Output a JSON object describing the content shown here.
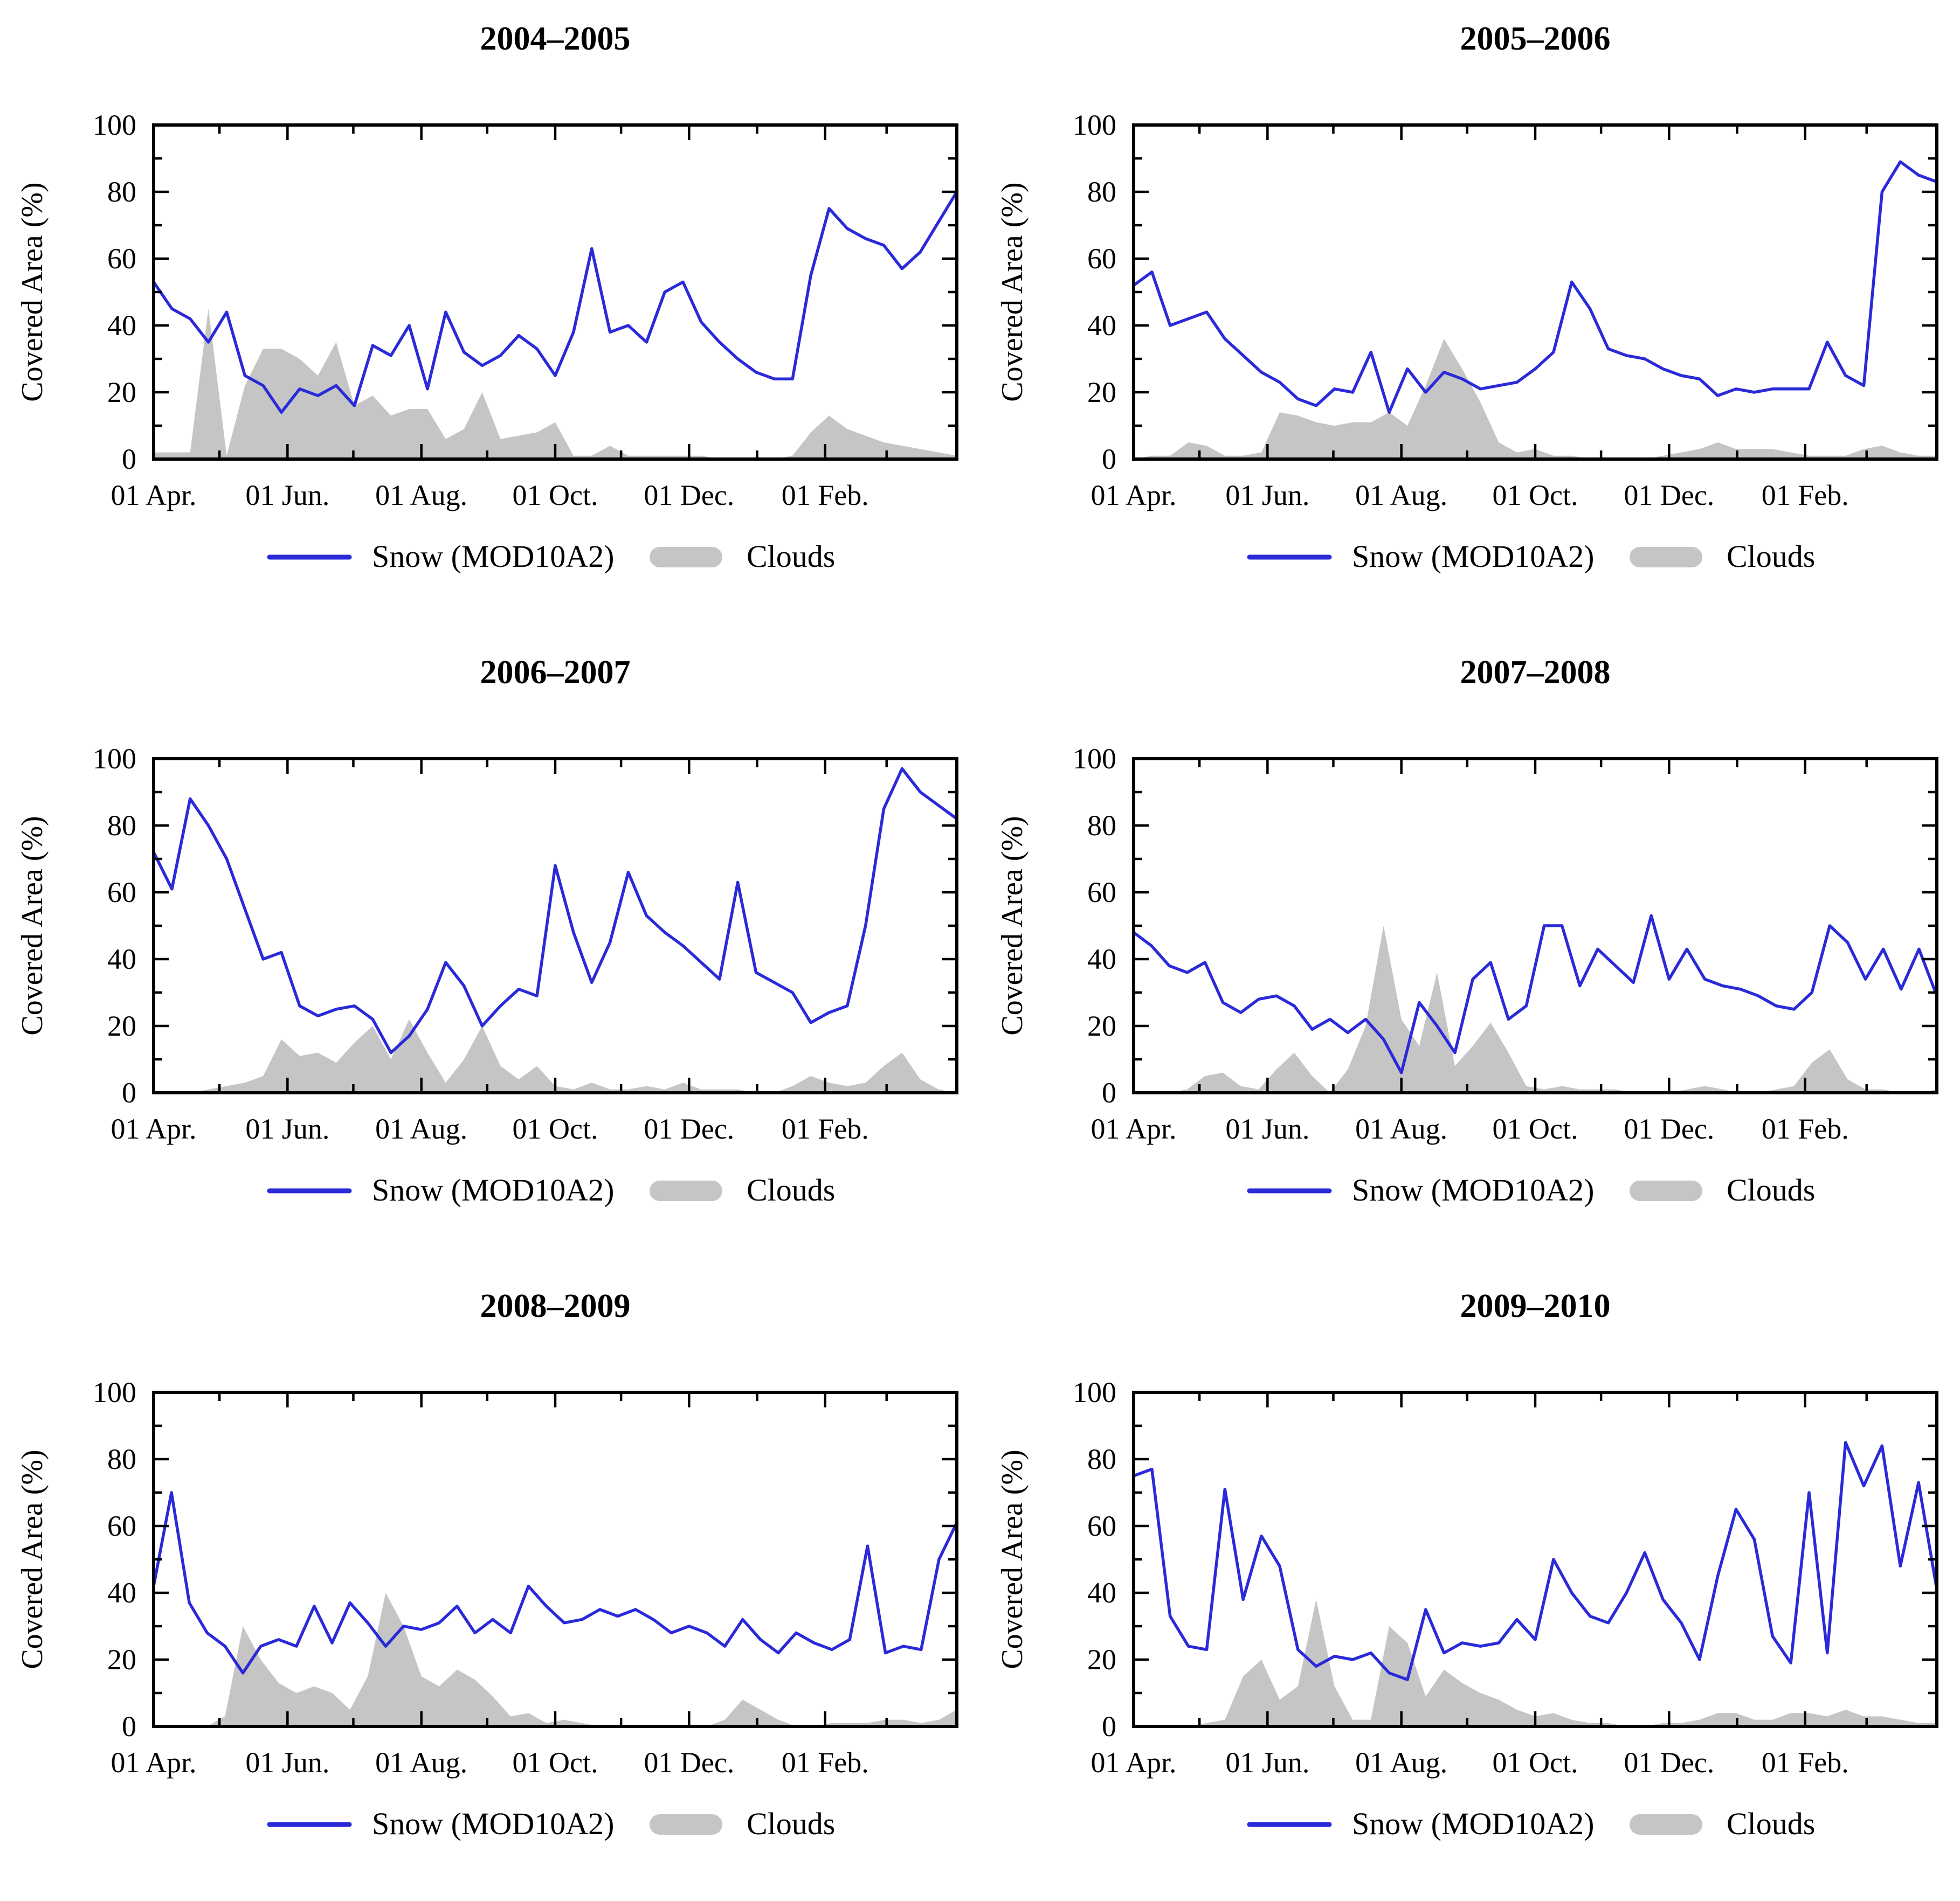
{
  "figure": {
    "background": "#ffffff",
    "ylabel": "Covered Area (%)",
    "legend": {
      "snow": "Snow (MOD10A2)",
      "clouds": "Clouds"
    },
    "colors": {
      "snow_line": "#2a2ad9",
      "cloud_fill": "#c5c5c5",
      "axis": "#000000"
    },
    "y_ticks": [
      0,
      20,
      40,
      60,
      80,
      100
    ],
    "y_minor_ticks": [
      10,
      30,
      50,
      70,
      90
    ],
    "x_ticks": [
      {
        "label": "01 Apr.",
        "day": 0
      },
      {
        "label": "01 Jun.",
        "day": 61
      },
      {
        "label": "01 Aug.",
        "day": 122
      },
      {
        "label": "01 Oct.",
        "day": 183
      },
      {
        "label": "01 Dec.",
        "day": 244
      },
      {
        "label": "01 Feb.",
        "day": 306
      }
    ],
    "x_minor_tick_days": [
      30,
      91,
      152,
      213,
      275,
      334
    ],
    "x_range_days": [
      0,
      366
    ],
    "y_range": [
      0,
      100
    ]
  },
  "chart_data": [
    {
      "type": "line",
      "title": "2004–2005",
      "xlabel": "",
      "ylabel": "Covered Area (%)",
      "ylim": [
        0,
        100
      ],
      "x_note": "samples evenly spaced 01 Apr to 31 Mar",
      "series": [
        {
          "name": "Snow (MOD10A2)",
          "style": "line",
          "values": [
            53,
            45,
            42,
            35,
            44,
            25,
            22,
            14,
            21,
            19,
            22,
            16,
            34,
            31,
            40,
            21,
            44,
            32,
            28,
            31,
            37,
            33,
            25,
            38,
            63,
            38,
            40,
            35,
            50,
            53,
            41,
            35,
            30,
            26,
            24,
            24,
            55,
            75,
            69,
            66,
            64,
            57,
            62,
            71,
            80
          ]
        },
        {
          "name": "Clouds",
          "style": "area",
          "values": [
            2,
            2,
            2,
            45,
            1,
            22,
            33,
            33,
            30,
            25,
            35,
            16,
            19,
            13,
            15,
            15,
            6,
            9,
            20,
            6,
            7,
            8,
            11,
            1,
            1,
            4,
            1,
            1,
            1,
            1,
            1,
            0,
            0,
            0,
            0,
            1,
            8,
            13,
            9,
            7,
            5,
            4,
            3,
            2,
            1
          ]
        }
      ]
    },
    {
      "type": "line",
      "title": "2005–2006",
      "xlabel": "",
      "ylabel": "Covered Area (%)",
      "ylim": [
        0,
        100
      ],
      "x_note": "samples evenly spaced 01 Apr to 31 Mar",
      "series": [
        {
          "name": "Snow (MOD10A2)",
          "style": "line",
          "values": [
            52,
            56,
            40,
            42,
            44,
            36,
            31,
            26,
            23,
            18,
            16,
            21,
            20,
            32,
            14,
            27,
            20,
            26,
            24,
            21,
            22,
            23,
            27,
            32,
            53,
            45,
            33,
            31,
            30,
            27,
            25,
            24,
            19,
            21,
            20,
            21,
            21,
            21,
            35,
            25,
            22,
            80,
            89,
            85,
            83
          ]
        },
        {
          "name": "Clouds",
          "style": "area",
          "values": [
            0,
            1,
            1,
            5,
            4,
            1,
            1,
            2,
            14,
            13,
            11,
            10,
            11,
            11,
            14,
            10,
            22,
            36,
            27,
            17,
            5,
            2,
            3,
            1,
            1,
            0,
            0,
            0,
            0,
            1,
            2,
            3,
            5,
            3,
            3,
            3,
            2,
            1,
            1,
            1,
            3,
            4,
            2,
            1,
            1
          ]
        }
      ]
    },
    {
      "type": "line",
      "title": "2006–2007",
      "xlabel": "",
      "ylabel": "Covered Area (%)",
      "ylim": [
        0,
        100
      ],
      "x_note": "samples evenly spaced 01 Apr to 31 Mar",
      "series": [
        {
          "name": "Snow (MOD10A2)",
          "style": "line",
          "values": [
            72,
            61,
            88,
            80,
            70,
            55,
            40,
            42,
            26,
            23,
            25,
            26,
            22,
            12,
            17,
            25,
            39,
            32,
            20,
            26,
            31,
            29,
            68,
            48,
            33,
            45,
            66,
            53,
            48,
            44,
            39,
            34,
            63,
            36,
            33,
            30,
            21,
            24,
            26,
            50,
            85,
            97,
            90,
            86,
            82
          ]
        },
        {
          "name": "Clouds",
          "style": "area",
          "values": [
            0,
            0,
            0,
            1,
            2,
            3,
            5,
            16,
            11,
            12,
            9,
            15,
            20,
            10,
            22,
            12,
            3,
            10,
            20,
            8,
            4,
            8,
            2,
            1,
            3,
            1,
            1,
            2,
            1,
            3,
            1,
            1,
            1,
            0,
            0,
            2,
            5,
            3,
            2,
            3,
            8,
            12,
            4,
            1,
            0
          ]
        }
      ]
    },
    {
      "type": "line",
      "title": "2007–2008",
      "xlabel": "",
      "ylabel": "Covered Area (%)",
      "ylim": [
        0,
        100
      ],
      "x_note": "samples evenly spaced 01 Apr to 31 Mar",
      "series": [
        {
          "name": "Snow (MOD10A2)",
          "style": "line",
          "values": [
            48,
            44,
            38,
            36,
            39,
            27,
            24,
            28,
            29,
            26,
            19,
            22,
            18,
            22,
            16,
            6,
            27,
            20,
            12,
            34,
            39,
            22,
            26,
            50,
            50,
            32,
            43,
            38,
            33,
            53,
            34,
            43,
            34,
            32,
            31,
            29,
            26,
            25,
            30,
            50,
            45,
            34,
            43,
            31,
            43,
            29
          ]
        },
        {
          "name": "Clouds",
          "style": "area",
          "values": [
            0,
            0,
            0,
            1,
            5,
            6,
            2,
            1,
            7,
            12,
            5,
            0,
            7,
            20,
            50,
            22,
            14,
            36,
            8,
            14,
            21,
            12,
            2,
            1,
            2,
            1,
            1,
            1,
            0,
            0,
            0,
            1,
            2,
            1,
            0,
            0,
            1,
            2,
            9,
            13,
            4,
            1,
            1,
            0,
            0,
            1
          ]
        }
      ]
    },
    {
      "type": "line",
      "title": "2008–2009",
      "xlabel": "",
      "ylabel": "Covered Area (%)",
      "ylim": [
        0,
        100
      ],
      "x_note": "samples evenly spaced 01 Apr to 31 Mar",
      "series": [
        {
          "name": "Snow (MOD10A2)",
          "style": "line",
          "values": [
            42,
            70,
            37,
            28,
            24,
            16,
            24,
            26,
            24,
            36,
            25,
            37,
            31,
            24,
            30,
            29,
            31,
            36,
            28,
            32,
            28,
            42,
            36,
            31,
            32,
            35,
            33,
            35,
            32,
            28,
            30,
            28,
            24,
            32,
            26,
            22,
            28,
            25,
            23,
            26,
            54,
            22,
            24,
            23,
            50,
            61
          ]
        },
        {
          "name": "Clouds",
          "style": "area",
          "values": [
            0,
            0,
            0,
            0,
            3,
            30,
            20,
            13,
            10,
            12,
            10,
            5,
            15,
            40,
            30,
            15,
            12,
            17,
            14,
            9,
            3,
            4,
            1,
            2,
            1,
            0,
            0,
            0,
            0,
            0,
            0,
            0,
            2,
            8,
            5,
            2,
            0,
            0,
            1,
            1,
            1,
            2,
            2,
            1,
            2,
            5
          ]
        }
      ]
    },
    {
      "type": "line",
      "title": "2009–2010",
      "xlabel": "",
      "ylabel": "Covered Area (%)",
      "ylim": [
        0,
        100
      ],
      "x_note": "samples evenly spaced 01 Apr to 31 Mar",
      "series": [
        {
          "name": "Snow (MOD10A2)",
          "style": "line",
          "values": [
            75,
            77,
            33,
            24,
            23,
            71,
            38,
            57,
            48,
            23,
            18,
            21,
            20,
            22,
            16,
            14,
            35,
            22,
            25,
            24,
            25,
            32,
            26,
            50,
            40,
            33,
            31,
            40,
            52,
            38,
            31,
            20,
            45,
            65,
            56,
            27,
            19,
            70,
            22,
            85,
            72,
            84,
            48,
            73,
            41
          ]
        },
        {
          "name": "Clouds",
          "style": "area",
          "values": [
            0,
            0,
            0,
            0,
            1,
            2,
            15,
            20,
            8,
            12,
            38,
            12,
            2,
            2,
            30,
            25,
            9,
            17,
            13,
            10,
            8,
            5,
            3,
            4,
            2,
            1,
            1,
            0,
            0,
            1,
            1,
            2,
            4,
            4,
            2,
            2,
            4,
            4,
            3,
            5,
            3,
            3,
            2,
            1,
            1
          ]
        }
      ]
    }
  ]
}
